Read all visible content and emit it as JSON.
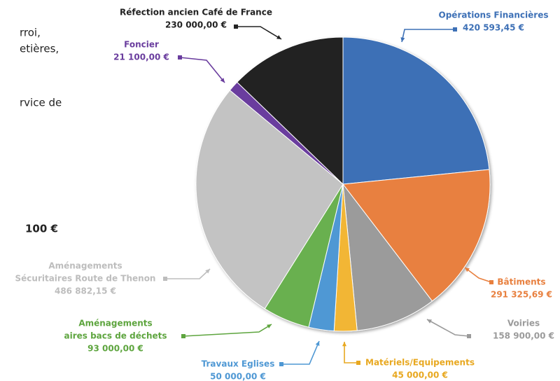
{
  "chart_data": {
    "type": "pie",
    "categories": [
      [
        "Opérations Financières"
      ],
      [
        "Bâtiments"
      ],
      [
        "Voiries"
      ],
      [
        "Matériels/Equipements"
      ],
      [
        "Travaux Eglises"
      ],
      [
        "Aménagements",
        "aires bacs de déchets"
      ],
      [
        "Aménagements",
        "Sécuritaires Route de Thenon"
      ],
      [
        "Foncier"
      ],
      [
        "Réfection ancien Café de France"
      ]
    ],
    "values": [
      420593.45,
      291325.69,
      158900,
      45000,
      50000,
      93000,
      486882.15,
      21100,
      230000
    ],
    "value_labels": [
      "420 593,45 €",
      "291 325,69 €",
      "158 900,00 €",
      "45 000,00 €",
      "50 000,00 €",
      "93 000,00 €",
      "486 882,15 €",
      "21 100,00 €",
      "230 000,00 €"
    ],
    "colors": [
      "#3d70b6",
      "#e8803f",
      "#9b9b9b",
      "#f2b636",
      "#4f98d4",
      "#69b04f",
      "#c3c3c3",
      "#6a3d9e",
      "#222222"
    ],
    "label_colors": [
      "#3d70b6",
      "#e8803f",
      "#9b9b9b",
      "#e8a820",
      "#4f98d4",
      "#5ea53f",
      "#bdbdbd",
      "#6a3d9e",
      "#222222"
    ]
  },
  "background_text": [
    "rroi,",
    "etières,",
    "rvice de",
    "100 €"
  ]
}
